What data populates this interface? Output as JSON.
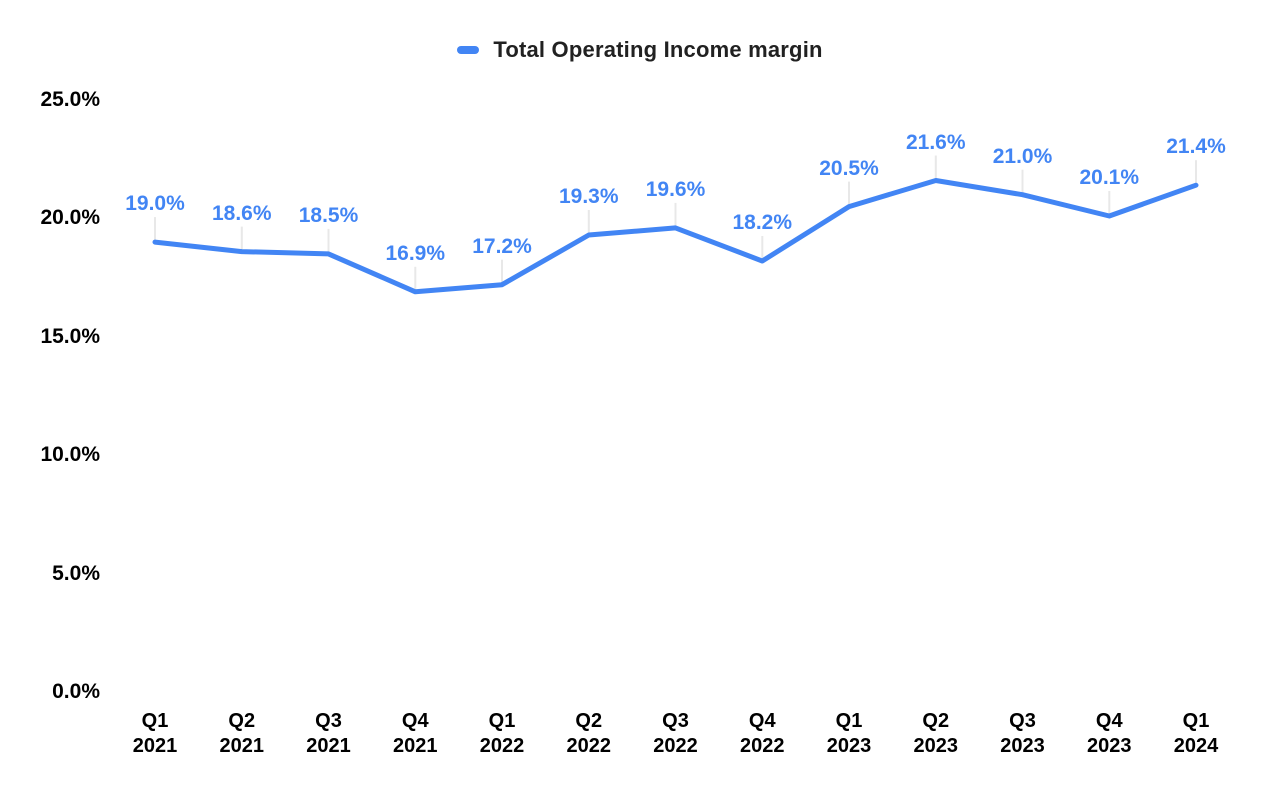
{
  "chart_data": {
    "type": "line",
    "title": "",
    "legend": {
      "label": "Total Operating Income margin",
      "position": "top"
    },
    "categories": [
      {
        "quarter": "Q1",
        "year": "2021"
      },
      {
        "quarter": "Q2",
        "year": "2021"
      },
      {
        "quarter": "Q3",
        "year": "2021"
      },
      {
        "quarter": "Q4",
        "year": "2021"
      },
      {
        "quarter": "Q1",
        "year": "2022"
      },
      {
        "quarter": "Q2",
        "year": "2022"
      },
      {
        "quarter": "Q3",
        "year": "2022"
      },
      {
        "quarter": "Q4",
        "year": "2022"
      },
      {
        "quarter": "Q1",
        "year": "2023"
      },
      {
        "quarter": "Q2",
        "year": "2023"
      },
      {
        "quarter": "Q3",
        "year": "2023"
      },
      {
        "quarter": "Q4",
        "year": "2023"
      },
      {
        "quarter": "Q1",
        "year": "2024"
      }
    ],
    "series": [
      {
        "name": "Total Operating Income margin",
        "values": [
          19.0,
          18.6,
          18.5,
          16.9,
          17.2,
          19.3,
          19.6,
          18.2,
          20.5,
          21.6,
          21.0,
          20.1,
          21.4
        ],
        "point_labels": [
          "19.0%",
          "18.6%",
          "18.5%",
          "16.9%",
          "17.2%",
          "19.3%",
          "19.6%",
          "18.2%",
          "20.5%",
          "21.6%",
          "21.0%",
          "20.1%",
          "21.4%"
        ]
      }
    ],
    "y_axis": {
      "range": [
        0,
        25
      ],
      "ticks": [
        {
          "label": "0.0%",
          "value": 0
        },
        {
          "label": "5.0%",
          "value": 5
        },
        {
          "label": "10.0%",
          "value": 10
        },
        {
          "label": "15.0%",
          "value": 15
        },
        {
          "label": "20.0%",
          "value": 20
        },
        {
          "label": "25.0%",
          "value": 25
        }
      ]
    },
    "grid": false,
    "axis_lines": false,
    "colors": {
      "line": "#4285F4",
      "data_label": "#4285F4",
      "axis_text": "#000000",
      "legend_text": "#212121",
      "leader_line": "#e8e8e8",
      "background": "#ffffff"
    }
  }
}
